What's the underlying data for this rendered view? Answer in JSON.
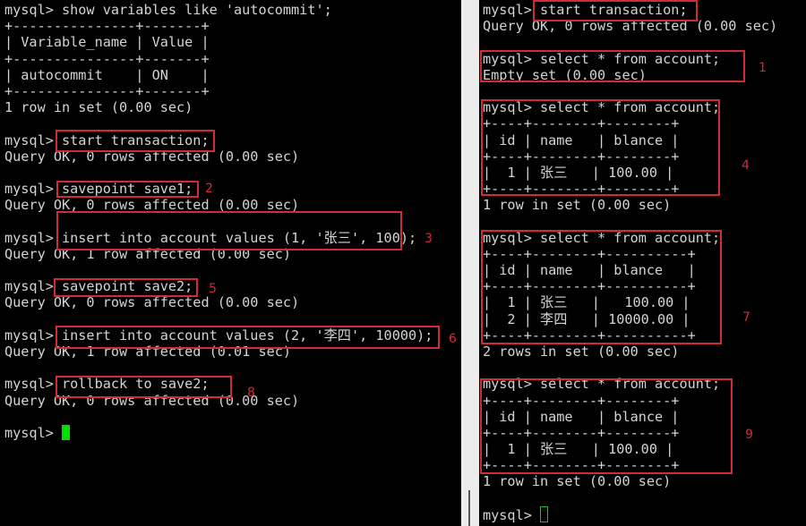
{
  "colors": {
    "background": "#000000",
    "text": "#d4d4d4",
    "annotation": "#d32a35",
    "cursor": "#00e000"
  },
  "left_terminal": {
    "lines": [
      "mysql> show variables like 'autocommit';",
      "+---------------+-------+",
      "| Variable_name | Value |",
      "+---------------+-------+",
      "| autocommit    | ON    |",
      "+---------------+-------+",
      "1 row in set (0.00 sec)",
      "",
      "mysql> start transaction;",
      "Query OK, 0 rows affected (0.00 sec)",
      "",
      "mysql> savepoint save1;",
      "Query OK, 0 rows affected (0.00 sec)",
      "",
      "mysql> insert into account values (1, '张三', 100);",
      "Query OK, 1 row affected (0.00 sec)",
      "",
      "mysql> savepoint save2;",
      "Query OK, 0 rows affected (0.00 sec)",
      "",
      "mysql> insert into account values (2, '李四', 10000);",
      "Query OK, 1 row affected (0.01 sec)",
      "",
      "mysql> rollback to save2;",
      "Query OK, 0 rows affected (0.00 sec)",
      "",
      "mysql> "
    ],
    "cursor": "solid",
    "annotations": [
      "2",
      "3",
      "5",
      "6",
      "8"
    ]
  },
  "right_terminal": {
    "lines": [
      "mysql> start transaction;",
      "Query OK, 0 rows affected (0.00 sec)",
      "",
      "mysql> select * from account;",
      "Empty set (0.00 sec)",
      "",
      "mysql> select * from account;",
      "+----+--------+--------+",
      "| id | name   | blance |",
      "+----+--------+--------+",
      "|  1 | 张三   | 100.00 |",
      "+----+--------+--------+",
      "1 row in set (0.00 sec)",
      "",
      "mysql> select * from account;",
      "+----+--------+----------+",
      "| id | name   | blance   |",
      "+----+--------+----------+",
      "|  1 | 张三   |   100.00 |",
      "|  2 | 李四   | 10000.00 |",
      "+----+--------+----------+",
      "2 rows in set (0.00 sec)",
      "",
      "mysql> select * from account;",
      "+----+--------+--------+",
      "| id | name   | blance |",
      "+----+--------+--------+",
      "|  1 | 张三   | 100.00 |",
      "+----+--------+--------+",
      "1 row in set (0.00 sec)",
      "",
      "mysql> "
    ],
    "cursor": "hollow",
    "annotations": [
      "1",
      "4",
      "7",
      "9"
    ]
  }
}
